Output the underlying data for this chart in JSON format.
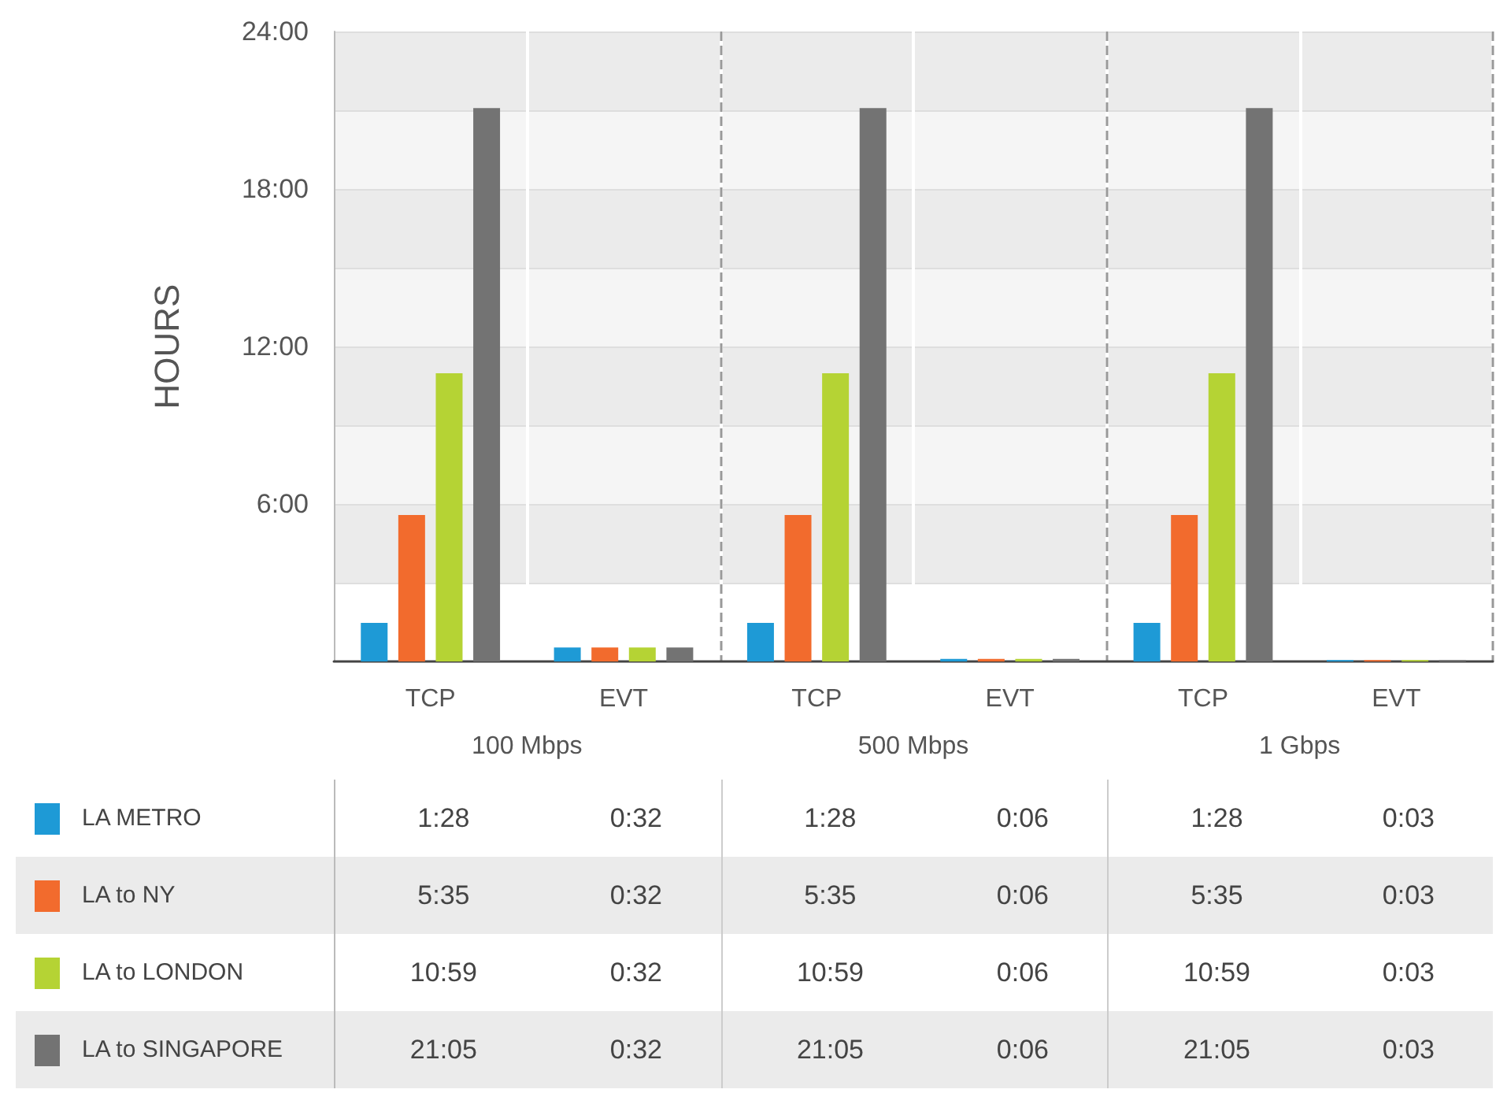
{
  "chart_data": {
    "type": "bar",
    "ylabel": "HOURS",
    "categories": [
      "TCP",
      "EVT",
      "TCP",
      "EVT",
      "TCP",
      "EVT"
    ],
    "annotations": [
      "100 Mbps",
      "500 Mbps",
      "1 Gbps"
    ],
    "series": [
      {
        "name": "LA METRO",
        "color": "#1e9ad6",
        "values": [
          1.467,
          0.533,
          1.467,
          0.1,
          1.467,
          0.05
        ],
        "value_labels": [
          "1:28",
          "0:32",
          "1:28",
          "0:06",
          "1:28",
          "0:03"
        ]
      },
      {
        "name": "LA to NY",
        "color": "#f26b2d",
        "values": [
          5.583,
          0.533,
          5.583,
          0.1,
          5.583,
          0.05
        ],
        "value_labels": [
          "5:35",
          "0:32",
          "5:35",
          "0:06",
          "5:35",
          "0:03"
        ]
      },
      {
        "name": "LA to LONDON",
        "color": "#b5d334",
        "values": [
          10.983,
          0.533,
          10.983,
          0.1,
          10.983,
          0.05
        ],
        "value_labels": [
          "10:59",
          "0:32",
          "10:59",
          "0:06",
          "10:59",
          "0:03"
        ]
      },
      {
        "name": "LA to SINGAPORE",
        "color": "#737373",
        "values": [
          21.083,
          0.533,
          21.083,
          0.1,
          21.083,
          0.05
        ],
        "value_labels": [
          "21:05",
          "0:32",
          "21:05",
          "0:06",
          "21:05",
          "0:03"
        ]
      }
    ],
    "ylim": [
      0,
      24
    ],
    "yticks": [
      {
        "value": 3,
        "label": null
      },
      {
        "value": 6,
        "label": "6:00"
      },
      {
        "value": 9,
        "label": null
      },
      {
        "value": 12,
        "label": "12:00"
      },
      {
        "value": 15,
        "label": null
      },
      {
        "value": 18,
        "label": "18:00"
      },
      {
        "value": 21,
        "label": null
      },
      {
        "value": 24,
        "label": "24:00"
      }
    ],
    "grid": "y",
    "legend": "bottom"
  }
}
